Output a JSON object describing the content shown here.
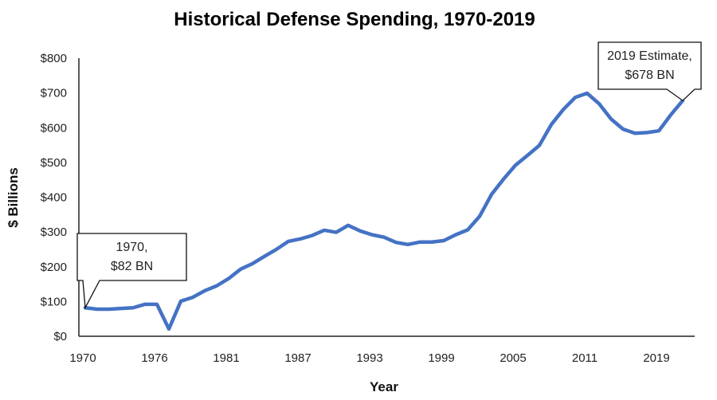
{
  "chart_data": {
    "type": "line",
    "title": "Historical Defense Spending, 1970-2019",
    "xlabel": "Year",
    "ylabel": "$ Billions",
    "ylim": [
      0,
      800
    ],
    "yticks": [
      "$0",
      "$100",
      "$200",
      "$300",
      "$400",
      "$500",
      "$600",
      "$700",
      "$800"
    ],
    "xtick_labels": [
      "1970",
      "1976",
      "1981",
      "1987",
      "1993",
      "1999",
      "2005",
      "2011",
      "2019"
    ],
    "grid": false,
    "line_color": "#4472C4",
    "series": [
      {
        "values": [
          82,
          78,
          78,
          80,
          82,
          92,
          92,
          21,
          101,
          112,
          131,
          145,
          166,
          193,
          209,
          230,
          250,
          273,
          280,
          290,
          305,
          299,
          319,
          303,
          292,
          285,
          270,
          264,
          271,
          271,
          275,
          292,
          306,
          345,
          408,
          452,
          492,
          520,
          549,
          609,
          652,
          687,
          699,
          669,
          625,
          596,
          584,
          586,
          591,
          637,
          678
        ]
      }
    ],
    "annotations": [
      {
        "lines": [
          "1970,",
          "$82 BN"
        ],
        "point_index": 0
      },
      {
        "lines": [
          "2019 Estimate,",
          "$678 BN"
        ],
        "point_index": 50
      }
    ]
  }
}
